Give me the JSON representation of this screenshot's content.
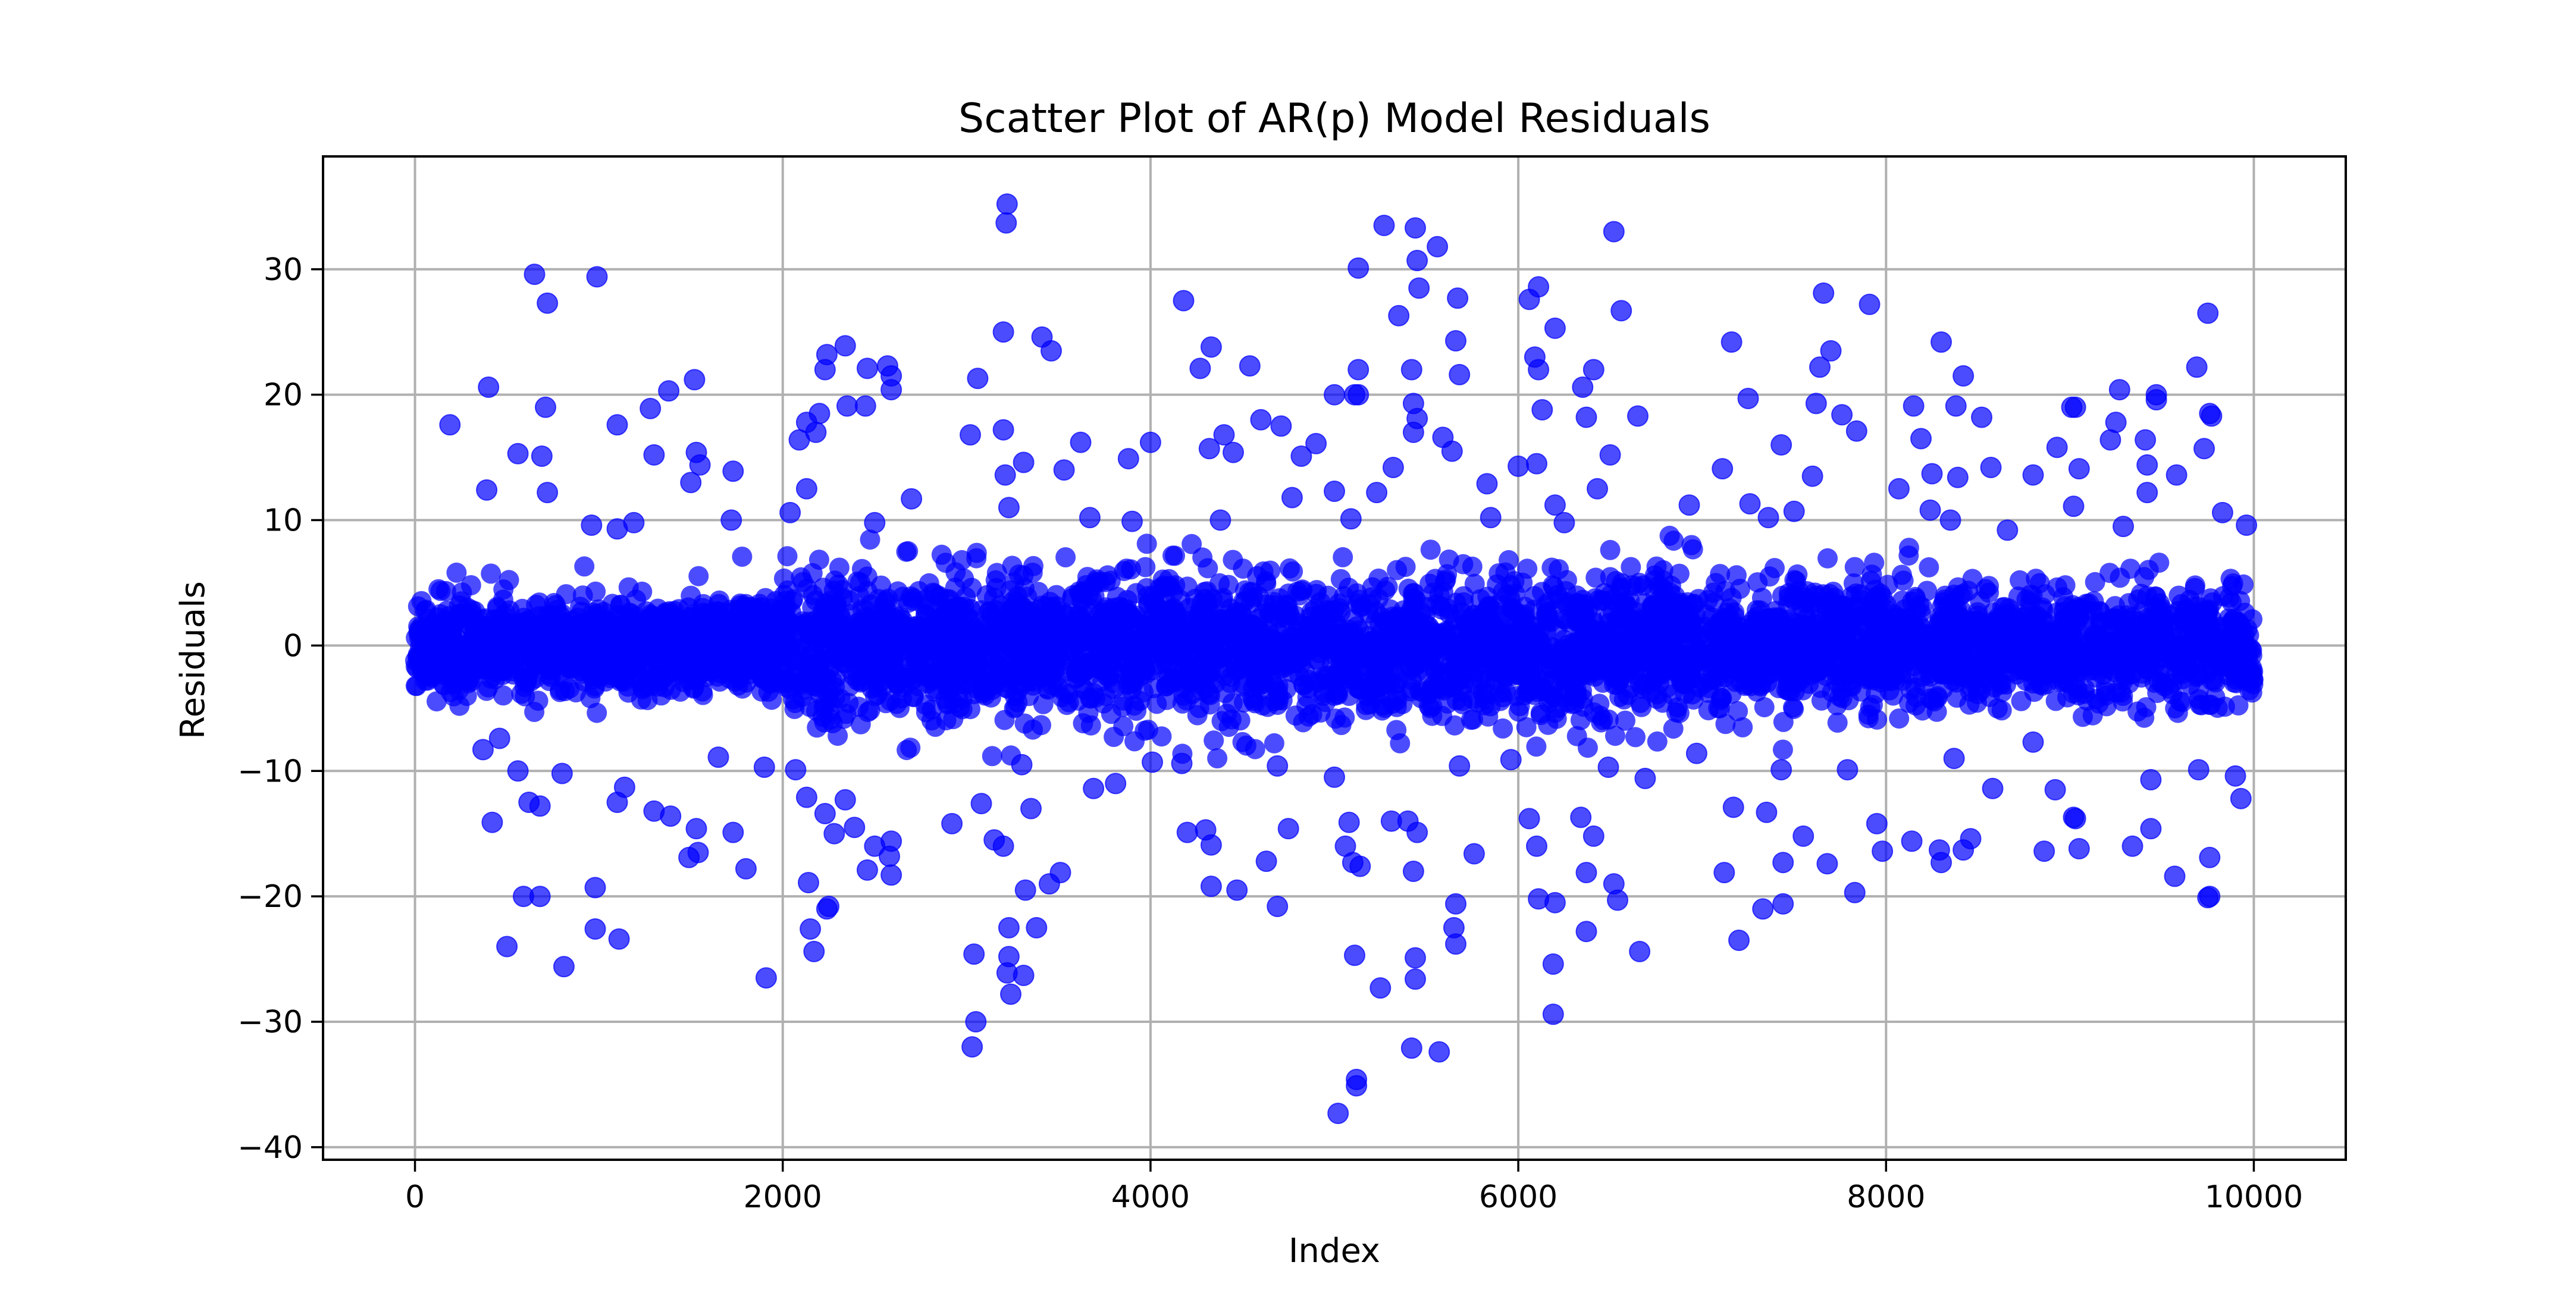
{
  "chart_data": {
    "type": "scatter",
    "title": "Scatter Plot of AR(p) Model Residuals",
    "xlabel": "Index",
    "ylabel": "Residuals",
    "xlim": [
      -500,
      10500
    ],
    "ylim": [
      -41,
      39
    ],
    "grid": true,
    "legend": "none",
    "x_ticks": [
      0,
      2000,
      4000,
      6000,
      8000,
      10000
    ],
    "x_tick_labels": [
      "0",
      "2000",
      "4000",
      "6000",
      "8000",
      "10000"
    ],
    "y_ticks": [
      -40,
      -30,
      -20,
      -10,
      0,
      10,
      20,
      30
    ],
    "y_tick_labels": [
      "−40",
      "−30",
      "−20",
      "−10",
      "0",
      "10",
      "20",
      "30"
    ],
    "series": [
      {
        "color": "#0000ff",
        "alpha": 0.7,
        "marker": "circle",
        "points": [
          [
            3220,
            35.2
          ],
          [
            3215,
            33.7
          ],
          [
            5270,
            33.5
          ],
          [
            5440,
            33.3
          ],
          [
            6520,
            33.0
          ],
          [
            5450,
            30.7
          ],
          [
            5560,
            31.8
          ],
          [
            5130,
            30.1
          ],
          [
            650,
            29.6
          ],
          [
            990,
            29.4
          ],
          [
            6110,
            28.6
          ],
          [
            5460,
            28.5
          ],
          [
            720,
            27.3
          ],
          [
            4180,
            27.5
          ],
          [
            5670,
            27.7
          ],
          [
            6060,
            27.6
          ],
          [
            7910,
            27.2
          ],
          [
            9750,
            26.5
          ],
          [
            5350,
            26.3
          ],
          [
            6560,
            26.7
          ],
          [
            7660,
            28.1
          ],
          [
            3200,
            25.0
          ],
          [
            3410,
            24.6
          ],
          [
            3460,
            23.5
          ],
          [
            2340,
            23.9
          ],
          [
            2240,
            23.2
          ],
          [
            6200,
            25.3
          ],
          [
            7160,
            24.2
          ],
          [
            8300,
            24.2
          ],
          [
            7700,
            23.5
          ],
          [
            8420,
            21.5
          ],
          [
            4270,
            22.1
          ],
          [
            4330,
            23.8
          ],
          [
            4540,
            22.3
          ],
          [
            5130,
            22.0
          ],
          [
            5420,
            22.0
          ],
          [
            5660,
            24.3
          ],
          [
            5680,
            21.6
          ],
          [
            6090,
            23.0
          ],
          [
            6110,
            22.0
          ],
          [
            6410,
            22.0
          ],
          [
            9690,
            22.2
          ],
          [
            7640,
            22.2
          ],
          [
            2230,
            22.0
          ],
          [
            2460,
            22.1
          ],
          [
            2570,
            22.3
          ],
          [
            2590,
            21.5
          ],
          [
            2590,
            20.4
          ],
          [
            1520,
            21.2
          ],
          [
            400,
            20.6
          ],
          [
            1380,
            20.3
          ],
          [
            3060,
            21.3
          ],
          [
            5000,
            20.0
          ],
          [
            5110,
            20.0
          ],
          [
            5130,
            20.0
          ],
          [
            6350,
            20.6
          ],
          [
            9270,
            20.4
          ],
          [
            9470,
            20.0
          ],
          [
            9470,
            19.6
          ],
          [
            8150,
            19.1
          ],
          [
            8380,
            19.1
          ],
          [
            9010,
            19.0
          ],
          [
            9030,
            19.0
          ],
          [
            7250,
            19.7
          ],
          [
            7620,
            19.3
          ],
          [
            7760,
            18.4
          ],
          [
            6650,
            18.3
          ],
          [
            6370,
            18.2
          ],
          [
            6130,
            18.8
          ],
          [
            4600,
            18.0
          ],
          [
            5430,
            19.3
          ],
          [
            5450,
            18.1
          ],
          [
            4710,
            17.5
          ],
          [
            9760,
            18.5
          ],
          [
            9770,
            18.3
          ],
          [
            9250,
            17.8
          ],
          [
            8520,
            18.2
          ],
          [
            2350,
            19.1
          ],
          [
            2450,
            19.1
          ],
          [
            2200,
            18.5
          ],
          [
            2130,
            17.8
          ],
          [
            2180,
            17.0
          ],
          [
            2090,
            16.4
          ],
          [
            1280,
            18.9
          ],
          [
            710,
            19.0
          ],
          [
            190,
            17.6
          ],
          [
            1100,
            17.6
          ],
          [
            3020,
            16.8
          ],
          [
            3200,
            17.2
          ],
          [
            3620,
            16.2
          ],
          [
            4000,
            16.2
          ],
          [
            4400,
            16.8
          ],
          [
            4820,
            15.1
          ],
          [
            4900,
            16.1
          ],
          [
            5590,
            16.6
          ],
          [
            5430,
            17.0
          ],
          [
            5640,
            15.5
          ],
          [
            6500,
            15.2
          ],
          [
            7430,
            16.0
          ],
          [
            7840,
            17.1
          ],
          [
            8190,
            16.5
          ],
          [
            8930,
            15.8
          ],
          [
            9220,
            16.4
          ],
          [
            9410,
            16.4
          ],
          [
            9730,
            15.7
          ],
          [
            560,
            15.3
          ],
          [
            690,
            15.1
          ],
          [
            1300,
            15.2
          ],
          [
            1530,
            15.4
          ],
          [
            1550,
            14.4
          ],
          [
            1500,
            13.0
          ],
          [
            1730,
            13.9
          ],
          [
            3210,
            13.6
          ],
          [
            3310,
            14.6
          ],
          [
            3530,
            14.0
          ],
          [
            3880,
            14.9
          ],
          [
            4320,
            15.7
          ],
          [
            4450,
            15.4
          ],
          [
            5320,
            14.2
          ],
          [
            6000,
            14.3
          ],
          [
            6100,
            14.5
          ],
          [
            7110,
            14.1
          ],
          [
            7600,
            13.5
          ],
          [
            8250,
            13.7
          ],
          [
            8390,
            13.4
          ],
          [
            8570,
            14.2
          ],
          [
            8800,
            13.6
          ],
          [
            9050,
            14.1
          ],
          [
            9420,
            14.4
          ],
          [
            9580,
            13.6
          ],
          [
            390,
            12.4
          ],
          [
            720,
            12.2
          ],
          [
            1100,
            9.3
          ],
          [
            1720,
            10.0
          ],
          [
            2130,
            12.5
          ],
          [
            2700,
            11.7
          ],
          [
            3230,
            11.0
          ],
          [
            3670,
            10.2
          ],
          [
            4770,
            11.8
          ],
          [
            5000,
            12.3
          ],
          [
            5230,
            12.2
          ],
          [
            5830,
            12.9
          ],
          [
            6200,
            11.2
          ],
          [
            6430,
            12.5
          ],
          [
            6930,
            11.2
          ],
          [
            7260,
            11.3
          ],
          [
            7500,
            10.7
          ],
          [
            8070,
            12.5
          ],
          [
            8240,
            10.8
          ],
          [
            9020,
            11.1
          ],
          [
            9420,
            12.2
          ],
          [
            9830,
            10.6
          ],
          [
            960,
            9.6
          ],
          [
            1190,
            9.8
          ],
          [
            2040,
            10.6
          ],
          [
            2500,
            9.8
          ],
          [
            3900,
            9.9
          ],
          [
            4380,
            10.0
          ],
          [
            5090,
            10.1
          ],
          [
            5850,
            10.2
          ],
          [
            6250,
            9.8
          ],
          [
            7360,
            10.2
          ],
          [
            8350,
            10.0
          ],
          [
            8660,
            9.2
          ],
          [
            9290,
            9.5
          ],
          [
            9960,
            9.6
          ],
          [
            3030,
            -32.0
          ],
          [
            3050,
            -30.0
          ],
          [
            5020,
            -37.3
          ],
          [
            5120,
            -35.1
          ],
          [
            5120,
            -34.6
          ],
          [
            5420,
            -32.1
          ],
          [
            5570,
            -32.4
          ],
          [
            5440,
            -26.6
          ],
          [
            5440,
            -24.9
          ],
          [
            6190,
            -29.4
          ],
          [
            5250,
            -27.3
          ],
          [
            5110,
            -24.7
          ],
          [
            5660,
            -23.8
          ],
          [
            5650,
            -22.5
          ],
          [
            5660,
            -20.6
          ],
          [
            5760,
            -16.6
          ],
          [
            6190,
            -25.4
          ],
          [
            6370,
            -22.8
          ],
          [
            6660,
            -24.4
          ],
          [
            7200,
            -23.5
          ],
          [
            7330,
            -21.0
          ],
          [
            7440,
            -20.6
          ],
          [
            7830,
            -19.7
          ],
          [
            9750,
            -20.1
          ],
          [
            9760,
            -20.0
          ],
          [
            9570,
            -18.4
          ],
          [
            9760,
            -16.9
          ],
          [
            9930,
            -12.2
          ],
          [
            8140,
            -15.6
          ],
          [
            8290,
            -16.3
          ],
          [
            8300,
            -17.3
          ],
          [
            8420,
            -16.3
          ],
          [
            8460,
            -15.4
          ],
          [
            8860,
            -16.4
          ],
          [
            9050,
            -16.2
          ],
          [
            9340,
            -16.0
          ],
          [
            9440,
            -14.6
          ],
          [
            8580,
            -11.4
          ],
          [
            8920,
            -11.5
          ],
          [
            9020,
            -13.7
          ],
          [
            9030,
            -13.8
          ],
          [
            3040,
            -24.6
          ],
          [
            3230,
            -24.8
          ],
          [
            3220,
            -26.1
          ],
          [
            3240,
            -27.8
          ],
          [
            3310,
            -26.3
          ],
          [
            3230,
            -22.5
          ],
          [
            3380,
            -22.5
          ],
          [
            2170,
            -24.4
          ],
          [
            2150,
            -22.6
          ],
          [
            2240,
            -21.0
          ],
          [
            2250,
            -20.8
          ],
          [
            2140,
            -18.9
          ],
          [
            2460,
            -17.9
          ],
          [
            2590,
            -18.3
          ],
          [
            2580,
            -16.8
          ],
          [
            2590,
            -15.6
          ],
          [
            2500,
            -16.0
          ],
          [
            2340,
            -12.3
          ],
          [
            2390,
            -14.5
          ],
          [
            2280,
            -15.0
          ],
          [
            2230,
            -13.4
          ],
          [
            2130,
            -12.1
          ],
          [
            2920,
            -14.2
          ],
          [
            3150,
            -15.5
          ],
          [
            3200,
            -16.0
          ],
          [
            3080,
            -12.6
          ],
          [
            3350,
            -13.0
          ],
          [
            3450,
            -19.0
          ],
          [
            3510,
            -18.1
          ],
          [
            3320,
            -19.5
          ],
          [
            4470,
            -19.5
          ],
          [
            4330,
            -19.2
          ],
          [
            4630,
            -17.2
          ],
          [
            4690,
            -20.8
          ],
          [
            4200,
            -14.9
          ],
          [
            4300,
            -14.7
          ],
          [
            4330,
            -15.9
          ],
          [
            4750,
            -14.6
          ],
          [
            5100,
            -17.3
          ],
          [
            5140,
            -17.6
          ],
          [
            5430,
            -18.0
          ],
          [
            5450,
            -14.9
          ],
          [
            5400,
            -14.0
          ],
          [
            5310,
            -14.0
          ],
          [
            5060,
            -16.0
          ],
          [
            5080,
            -14.1
          ],
          [
            6060,
            -13.8
          ],
          [
            6100,
            -16.0
          ],
          [
            6110,
            -20.2
          ],
          [
            6200,
            -20.5
          ],
          [
            6370,
            -18.1
          ],
          [
            6410,
            -15.2
          ],
          [
            6520,
            -19.0
          ],
          [
            6540,
            -20.3
          ],
          [
            6340,
            -13.7
          ],
          [
            7120,
            -18.1
          ],
          [
            7170,
            -12.9
          ],
          [
            7350,
            -13.3
          ],
          [
            7440,
            -17.3
          ],
          [
            7550,
            -15.2
          ],
          [
            7680,
            -17.4
          ],
          [
            7950,
            -14.2
          ],
          [
            7980,
            -16.4
          ],
          [
            1910,
            -26.5
          ],
          [
            810,
            -25.6
          ],
          [
            500,
            -24.0
          ],
          [
            980,
            -22.6
          ],
          [
            1110,
            -23.4
          ],
          [
            590,
            -20.0
          ],
          [
            680,
            -20.0
          ],
          [
            980,
            -19.3
          ],
          [
            1530,
            -14.6
          ],
          [
            1540,
            -16.5
          ],
          [
            1490,
            -16.9
          ],
          [
            1730,
            -14.9
          ],
          [
            1800,
            -17.8
          ],
          [
            420,
            -14.1
          ],
          [
            620,
            -12.5
          ],
          [
            680,
            -12.8
          ],
          [
            1300,
            -13.2
          ],
          [
            1390,
            -13.6
          ],
          [
            1100,
            -12.5
          ],
          [
            1140,
            -11.3
          ],
          [
            560,
            -10.0
          ],
          [
            800,
            -10.2
          ],
          [
            1650,
            -8.9
          ],
          [
            1900,
            -9.7
          ],
          [
            2070,
            -9.9
          ],
          [
            3300,
            -9.5
          ],
          [
            3690,
            -11.4
          ],
          [
            3810,
            -11.0
          ],
          [
            4010,
            -9.3
          ],
          [
            4170,
            -9.4
          ],
          [
            4690,
            -9.6
          ],
          [
            5000,
            -10.5
          ],
          [
            5680,
            -9.6
          ],
          [
            5960,
            -9.1
          ],
          [
            6490,
            -9.7
          ],
          [
            6690,
            -10.6
          ],
          [
            6970,
            -8.6
          ],
          [
            7430,
            -9.9
          ],
          [
            7790,
            -9.9
          ],
          [
            8370,
            -9.0
          ],
          [
            8800,
            -7.7
          ],
          [
            9440,
            -10.7
          ],
          [
            9700,
            -9.9
          ],
          [
            9900,
            -10.4
          ],
          [
            370,
            -8.3
          ],
          [
            460,
            -7.4
          ]
        ]
      }
    ]
  }
}
